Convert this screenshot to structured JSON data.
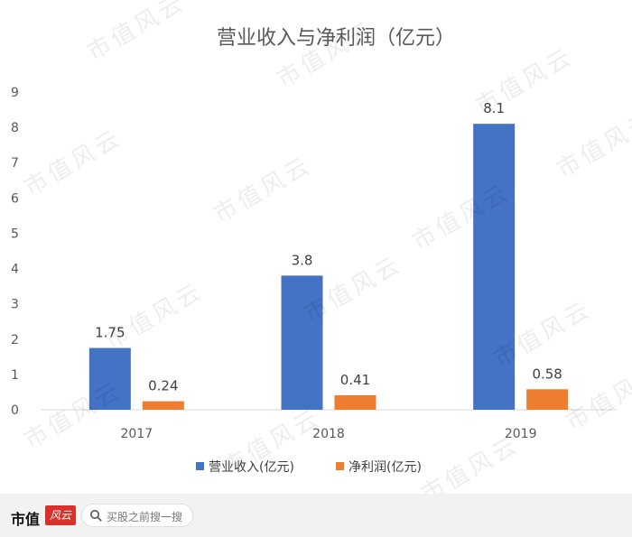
{
  "chart_data": {
    "type": "bar",
    "title": "营业收入与净利润（亿元）",
    "categories": [
      "2017",
      "2018",
      "2019"
    ],
    "series": [
      {
        "name": "营业收入(亿元)",
        "values": [
          1.75,
          3.8,
          8.1
        ],
        "labels": [
          "1.75",
          "3.8",
          "8.1"
        ],
        "color": "#4472c4"
      },
      {
        "name": "净利润(亿元)",
        "values": [
          0.24,
          0.41,
          0.58
        ],
        "labels": [
          "0.24",
          "0.41",
          "0.58"
        ],
        "color": "#ed7d31"
      }
    ],
    "yticks": [
      "0",
      "1",
      "2",
      "3",
      "4",
      "5",
      "6",
      "7",
      "8",
      "9"
    ],
    "ylim": [
      0,
      9
    ],
    "grid": false,
    "legend_position": "bottom"
  },
  "watermark": "市值风云",
  "footer": {
    "brand": "市值",
    "brand_mark": "风云",
    "search_placeholder": "买股之前搜一搜"
  }
}
